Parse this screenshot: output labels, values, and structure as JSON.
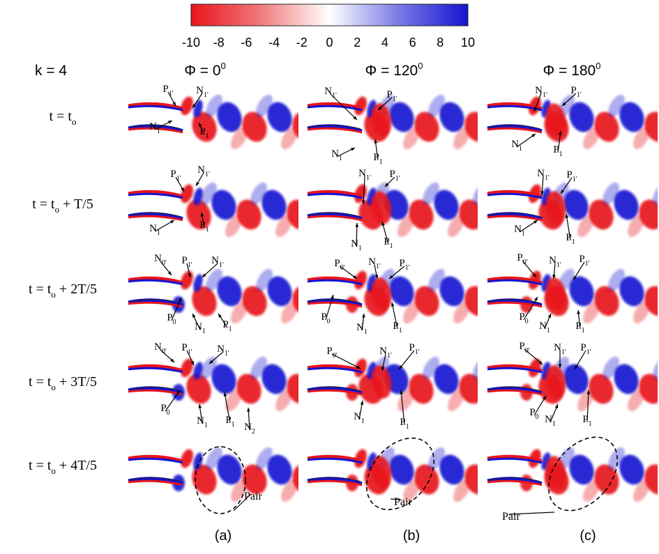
{
  "colorbar": {
    "ticks": [
      "-10",
      "-8",
      "-6",
      "-4",
      "-2",
      "0",
      "2",
      "4",
      "6",
      "8",
      "10"
    ],
    "colors": {
      "negative": "#e8141c",
      "zero": "#ffffff",
      "positive": "#1414d2"
    }
  },
  "header": {
    "k_label": "k = 4"
  },
  "columns": [
    {
      "phi_label": "Φ = 0",
      "phi_exp": "0",
      "panel_label": "(a)"
    },
    {
      "phi_label": "Φ = 120",
      "phi_exp": "0",
      "panel_label": "(b)"
    },
    {
      "phi_label": "Φ = 180",
      "phi_exp": "0",
      "panel_label": "(c)"
    }
  ],
  "rows": [
    {
      "t_main": "t = t",
      "t_sub": "o",
      "t_rest": ""
    },
    {
      "t_main": "t = t",
      "t_sub": "o",
      "t_rest": " + T/5"
    },
    {
      "t_main": "t = t",
      "t_sub": "o",
      "t_rest": " + 2T/5"
    },
    {
      "t_main": "t = t",
      "t_sub": "o",
      "t_rest": " + 3T/5"
    },
    {
      "t_main": "t = t",
      "t_sub": "o",
      "t_rest": " + 4T/5"
    }
  ],
  "vortex_labels": {
    "P1p": {
      "base": "P",
      "sub": "1'"
    },
    "N1p": {
      "base": "N",
      "sub": "1'"
    },
    "P1": {
      "base": "P",
      "sub": "1"
    },
    "N1": {
      "base": "N",
      "sub": "1"
    },
    "P0p": {
      "base": "P",
      "sub": "0'"
    },
    "N0p": {
      "base": "N",
      "sub": "0'"
    },
    "P0": {
      "base": "P",
      "sub": "0"
    },
    "N2": {
      "base": "N",
      "sub": "2"
    }
  },
  "pair_label": "Pair"
}
